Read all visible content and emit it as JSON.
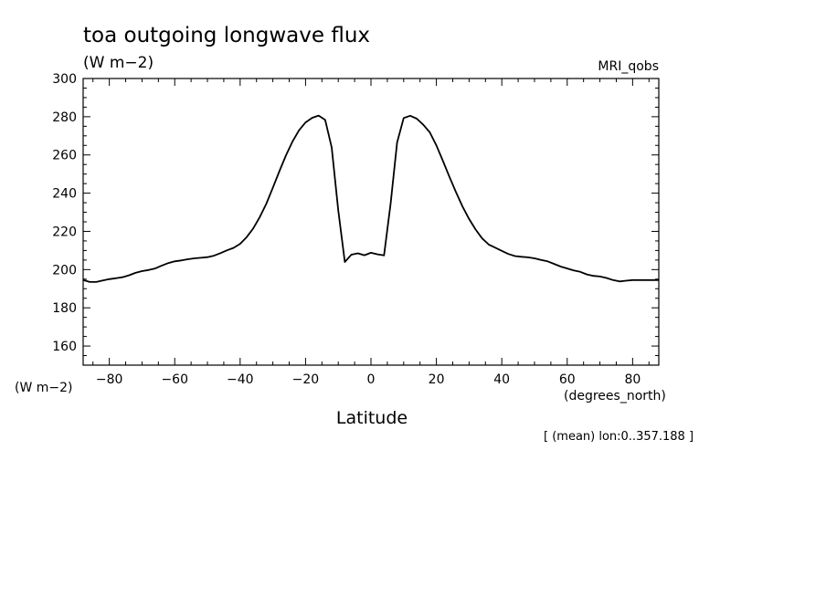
{
  "chart_data": {
    "type": "line",
    "title": "toa outgoing longwave flux",
    "units": "(W m-2)",
    "dataset_label": "MRI_qobs",
    "y_units_label": "(W m-2)",
    "x_units_label": "(degrees_north)",
    "xlabel": "Latitude",
    "footnote": "[ (mean) lon:0..357.188 ]",
    "xlim": [
      -88,
      88
    ],
    "ylim": [
      150,
      300
    ],
    "xticks": [
      -80,
      -60,
      -40,
      -20,
      0,
      20,
      40,
      60,
      80
    ],
    "yticks": [
      160,
      180,
      200,
      220,
      240,
      260,
      280,
      300
    ],
    "x_minor_step": 5,
    "y_minor_step": 5,
    "grid": false,
    "series": [
      {
        "x": [
          -88,
          -86,
          -84,
          -82,
          -80,
          -78,
          -76,
          -74,
          -72,
          -70,
          -68,
          -66,
          -64,
          -62,
          -60,
          -58,
          -56,
          -54,
          -52,
          -50,
          -48,
          -46,
          -44,
          -42,
          -40,
          -38,
          -36,
          -34,
          -32,
          -30,
          -28,
          -26,
          -24,
          -22,
          -20,
          -18,
          -16,
          -14,
          -12,
          -10,
          -8,
          -6,
          -4,
          -2,
          0,
          2,
          4,
          6,
          8,
          10,
          12,
          14,
          16,
          18,
          20,
          22,
          24,
          26,
          28,
          30,
          32,
          34,
          36,
          38,
          40,
          42,
          44,
          46,
          48,
          50,
          52,
          54,
          56,
          58,
          60,
          62,
          64,
          66,
          68,
          70,
          72,
          74,
          76,
          78,
          80,
          82,
          84,
          86,
          88
        ],
        "values": [
          194.5,
          193.5,
          193.5,
          194.3,
          195,
          195.5,
          196,
          197,
          198.3,
          199.2,
          199.8,
          200.6,
          202,
          203.4,
          204.3,
          204.8,
          205.4,
          205.9,
          206.2,
          206.5,
          207.3,
          208.6,
          210.1,
          211.4,
          213.5,
          217,
          221.5,
          227.5,
          234.5,
          242.8,
          251.5,
          259.7,
          267,
          272.9,
          277,
          279.4,
          280.6,
          278.3,
          264,
          231,
          204,
          207.8,
          208.5,
          207.5,
          208.8,
          208,
          207.4,
          234.5,
          266.5,
          279.3,
          280.5,
          279,
          275.8,
          271.8,
          265,
          256.8,
          248.5,
          240.5,
          233,
          226.5,
          221,
          216.3,
          213.1,
          211.5,
          209.8,
          208.2,
          207.1,
          206.7,
          206.4,
          205.9,
          205.1,
          204.3,
          203,
          201.6,
          200.6,
          199.6,
          198.8,
          197.5,
          196.7,
          196.4,
          195.6,
          194.5,
          193.8,
          194.2,
          194.5,
          194.5,
          194.5,
          194.5,
          194.5
        ]
      }
    ]
  }
}
